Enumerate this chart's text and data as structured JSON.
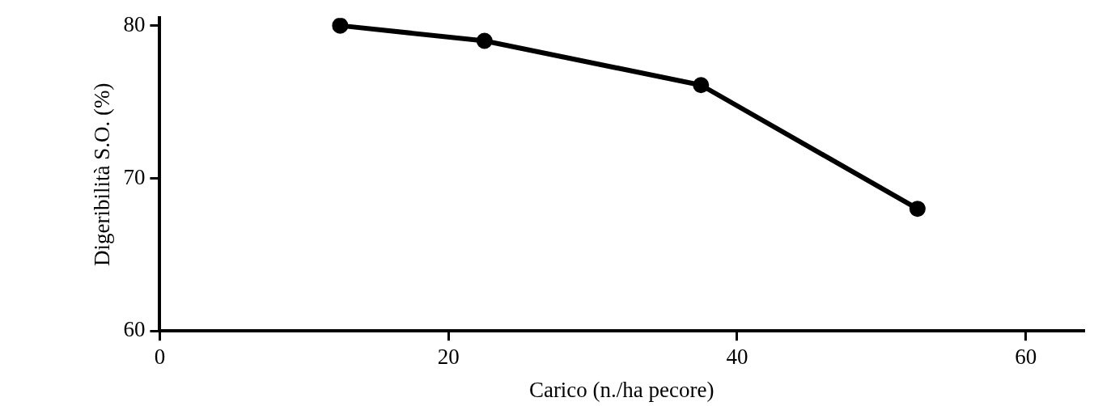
{
  "chart_data": {
    "type": "line",
    "xlabel": "Carico (n./ha pecore)",
    "ylabel": "Digeribilità S.O. (%)",
    "x": [
      12.5,
      22.5,
      37.5,
      52.5
    ],
    "series": [
      {
        "color": "#000000",
        "values": [
          80,
          79,
          76.1,
          68
        ]
      }
    ],
    "xlim": [
      0,
      64
    ],
    "xticks": [
      0,
      20,
      40,
      60
    ],
    "ylim": [
      60,
      80.5
    ],
    "yticks": [
      60,
      70,
      80
    ],
    "grid": false,
    "legend": false,
    "marker": "circle",
    "line_style": "solid"
  }
}
